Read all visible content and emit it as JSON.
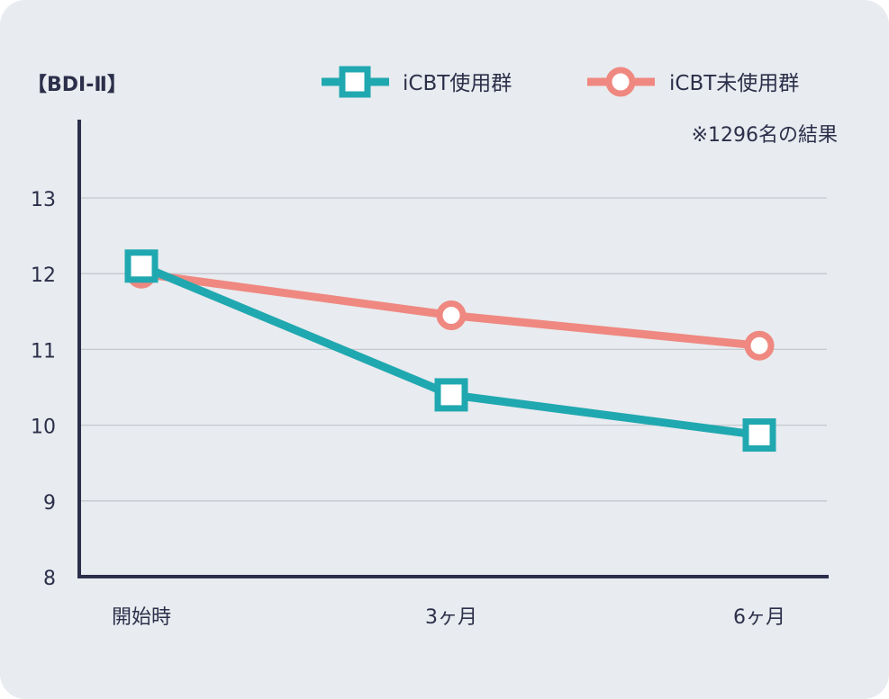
{
  "chart_data": {
    "type": "line",
    "ylabel": "【BDI-Ⅱ】",
    "note": "※1296名の結果",
    "categories": [
      "開始時",
      "3ヶ月",
      "6ヶ月"
    ],
    "ylim": [
      8,
      13
    ],
    "yticks": [
      8,
      9,
      10,
      11,
      12,
      13
    ],
    "grid": true,
    "legend_position": "top-right",
    "series": [
      {
        "name": "iCBT使用群",
        "marker": "square",
        "color": "#20a8b0",
        "values": [
          12.1,
          10.4,
          9.87
        ]
      },
      {
        "name": "iCBT未使用群",
        "marker": "circle",
        "color": "#ef8880",
        "values": [
          12.0,
          11.45,
          11.05
        ]
      }
    ]
  },
  "colors": {
    "background": "#e8ebef",
    "axis": "#2c2f4a",
    "grid": "#c4c8cf"
  }
}
